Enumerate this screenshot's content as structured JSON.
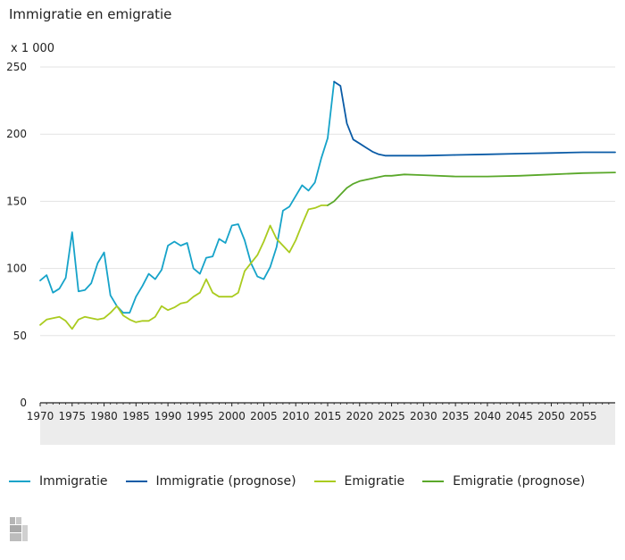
{
  "title": "Immigratie en emigratie",
  "unit_label": "x 1 000",
  "legend": [
    {
      "label": "Immigratie",
      "color": "#16a3c9"
    },
    {
      "label": "Immigratie (prognose)",
      "color": "#0a5ba6"
    },
    {
      "label": "Emigratie",
      "color": "#aacb1f"
    },
    {
      "label": "Emigratie (prognose)",
      "color": "#5aa82a"
    }
  ],
  "logo": {
    "text": "cbs"
  },
  "chart_data": {
    "type": "line",
    "title": "Immigratie en emigratie",
    "ylabel": "x 1 000",
    "ylim": [
      0,
      250
    ],
    "yticks": [
      0,
      50,
      100,
      150,
      200,
      250
    ],
    "xlim": [
      1970,
      2060
    ],
    "xticks": [
      1970,
      1975,
      1980,
      1985,
      1990,
      1995,
      2000,
      2005,
      2010,
      2015,
      2020,
      2025,
      2030,
      2035,
      2040,
      2045,
      2050,
      2055
    ],
    "grid": true,
    "legend_position": "bottom",
    "series": [
      {
        "name": "Immigratie",
        "color": "#16a3c9",
        "x": [
          1970,
          1971,
          1972,
          1973,
          1974,
          1975,
          1976,
          1977,
          1978,
          1979,
          1980,
          1981,
          1982,
          1983,
          1984,
          1985,
          1986,
          1987,
          1988,
          1989,
          1990,
          1991,
          1992,
          1993,
          1994,
          1995,
          1996,
          1997,
          1998,
          1999,
          2000,
          2001,
          2002,
          2003,
          2004,
          2005,
          2006,
          2007,
          2008,
          2009,
          2010,
          2011,
          2012,
          2013,
          2014,
          2015,
          2016
        ],
        "y": [
          91,
          95,
          82,
          85,
          93,
          127,
          83,
          84,
          89,
          104,
          112,
          80,
          72,
          67,
          67,
          79,
          87,
          96,
          92,
          99,
          117,
          120,
          117,
          119,
          100,
          96,
          108,
          109,
          122,
          119,
          132,
          133,
          121,
          104,
          94,
          92,
          101,
          116,
          143,
          146,
          154,
          162,
          158,
          164,
          182,
          197,
          239
        ]
      },
      {
        "name": "Immigratie (prognose)",
        "color": "#0a5ba6",
        "x": [
          2016,
          2017,
          2018,
          2019,
          2020,
          2021,
          2022,
          2023,
          2024,
          2025,
          2030,
          2035,
          2040,
          2045,
          2050,
          2055,
          2060
        ],
        "y": [
          239,
          236,
          208,
          196,
          193,
          190,
          187,
          185,
          184,
          184,
          184,
          184.5,
          185,
          185.5,
          186,
          186.5,
          186.5
        ]
      },
      {
        "name": "Emigratie",
        "color": "#aacb1f",
        "x": [
          1970,
          1971,
          1972,
          1973,
          1974,
          1975,
          1976,
          1977,
          1978,
          1979,
          1980,
          1981,
          1982,
          1983,
          1984,
          1985,
          1986,
          1987,
          1988,
          1989,
          1990,
          1991,
          1992,
          1993,
          1994,
          1995,
          1996,
          1997,
          1998,
          1999,
          2000,
          2001,
          2002,
          2003,
          2004,
          2005,
          2006,
          2007,
          2008,
          2009,
          2010,
          2011,
          2012,
          2013,
          2014,
          2015
        ],
        "y": [
          58,
          62,
          63,
          64,
          61,
          55,
          62,
          64,
          63,
          62,
          63,
          67,
          72,
          65,
          62,
          60,
          61,
          61,
          64,
          72,
          69,
          71,
          74,
          75,
          79,
          82,
          92,
          82,
          79,
          79,
          79,
          82,
          98,
          104,
          110,
          120,
          132,
          122,
          117,
          112,
          121,
          133,
          144,
          145,
          147,
          147
        ]
      },
      {
        "name": "Emigratie (prognose)",
        "color": "#5aa82a",
        "x": [
          2015,
          2016,
          2017,
          2018,
          2019,
          2020,
          2021,
          2022,
          2023,
          2024,
          2025,
          2027,
          2030,
          2035,
          2040,
          2045,
          2050,
          2055,
          2060
        ],
        "y": [
          147,
          150,
          155,
          160,
          163,
          165,
          166,
          167,
          168,
          169,
          169,
          170,
          169.5,
          168.5,
          168.5,
          169,
          170,
          171,
          171.5
        ]
      }
    ]
  }
}
